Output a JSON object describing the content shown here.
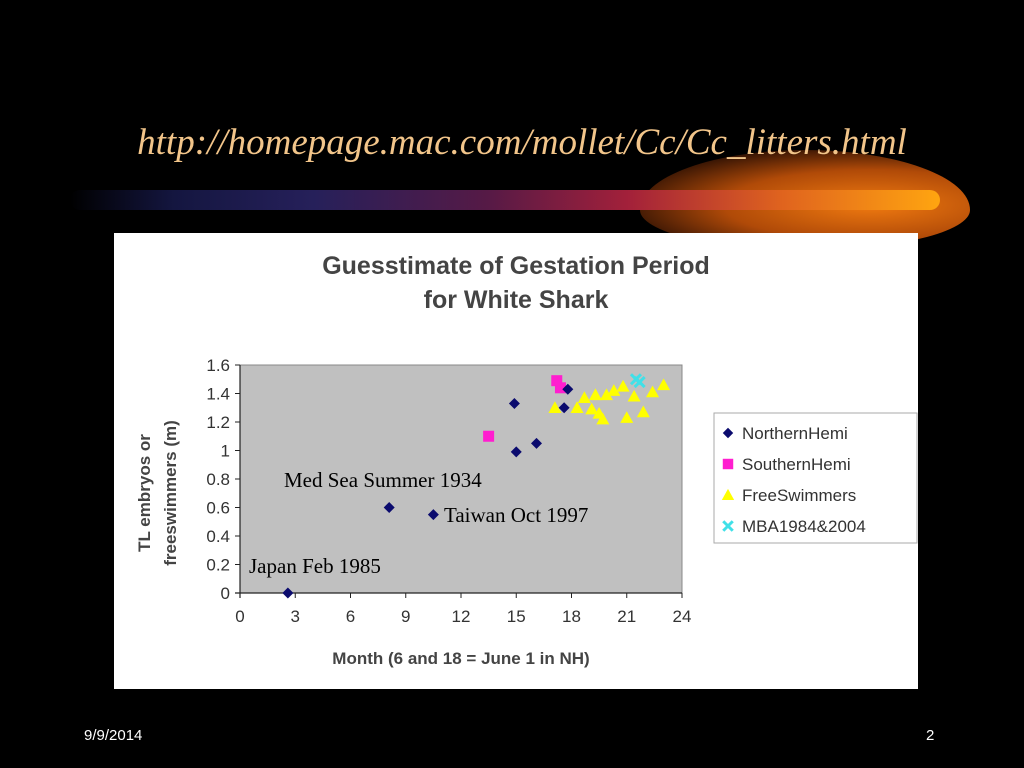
{
  "slide": {
    "title": "http://homepage.mac.com/mollet/Cc/Cc_litters.html",
    "footer_date": "9/9/2014",
    "page_number": "2"
  },
  "colors": {
    "background": "#000000",
    "title": "#f2c58a",
    "NorthernHemi": "#0b0b6e",
    "SouthernHemi": "#ff1ecf",
    "FreeSwimmers": "#ffff00",
    "MBA1984&2004": "#40e0e8",
    "plot_area": "#c0c0c0"
  },
  "chart_data": {
    "type": "scatter",
    "title": [
      "Guesstimate of Gestation Period",
      "for White Shark"
    ],
    "xlabel": "Month (6 and 18 = June 1 in NH)",
    "ylabel": [
      "TL embryos or",
      "freeswimmers (m)"
    ],
    "xlim": [
      0,
      24
    ],
    "ylim": [
      0,
      1.6
    ],
    "xticks": [
      "0",
      "3",
      "6",
      "9",
      "12",
      "15",
      "18",
      "21",
      "24"
    ],
    "yticks": [
      "0",
      "0.2",
      "0.4",
      "0.6",
      "0.8",
      "1",
      "1.2",
      "1.4",
      "1.6"
    ],
    "grid": false,
    "legend_position": "right",
    "series": [
      {
        "name": "NorthernHemi",
        "marker": "diamond",
        "points": [
          [
            2.6,
            0.0
          ],
          [
            8.1,
            0.6
          ],
          [
            10.5,
            0.55
          ],
          [
            14.9,
            1.33
          ],
          [
            15.0,
            0.99
          ],
          [
            16.1,
            1.05
          ],
          [
            17.6,
            1.3
          ],
          [
            17.8,
            1.43
          ]
        ]
      },
      {
        "name": "SouthernHemi",
        "marker": "square",
        "points": [
          [
            13.5,
            1.1
          ],
          [
            17.2,
            1.49
          ],
          [
            17.4,
            1.44
          ]
        ]
      },
      {
        "name": "FreeSwimmers",
        "marker": "triangle",
        "points": [
          [
            17.1,
            1.3
          ],
          [
            18.3,
            1.3
          ],
          [
            18.7,
            1.37
          ],
          [
            19.1,
            1.29
          ],
          [
            19.3,
            1.39
          ],
          [
            19.5,
            1.26
          ],
          [
            19.7,
            1.22
          ],
          [
            19.9,
            1.39
          ],
          [
            20.3,
            1.42
          ],
          [
            20.8,
            1.45
          ],
          [
            21.0,
            1.23
          ],
          [
            21.4,
            1.38
          ],
          [
            21.9,
            1.27
          ],
          [
            22.4,
            1.41
          ],
          [
            23.0,
            1.46
          ]
        ]
      },
      {
        "name": "MBA1984&2004",
        "marker": "x",
        "points": [
          [
            21.5,
            1.5
          ],
          [
            21.7,
            1.48
          ]
        ]
      }
    ],
    "annotations": [
      {
        "text": "Med Sea Summer 1934"
      },
      {
        "text": "Taiwan Oct 1997"
      },
      {
        "text": "Japan Feb 1985"
      }
    ]
  }
}
